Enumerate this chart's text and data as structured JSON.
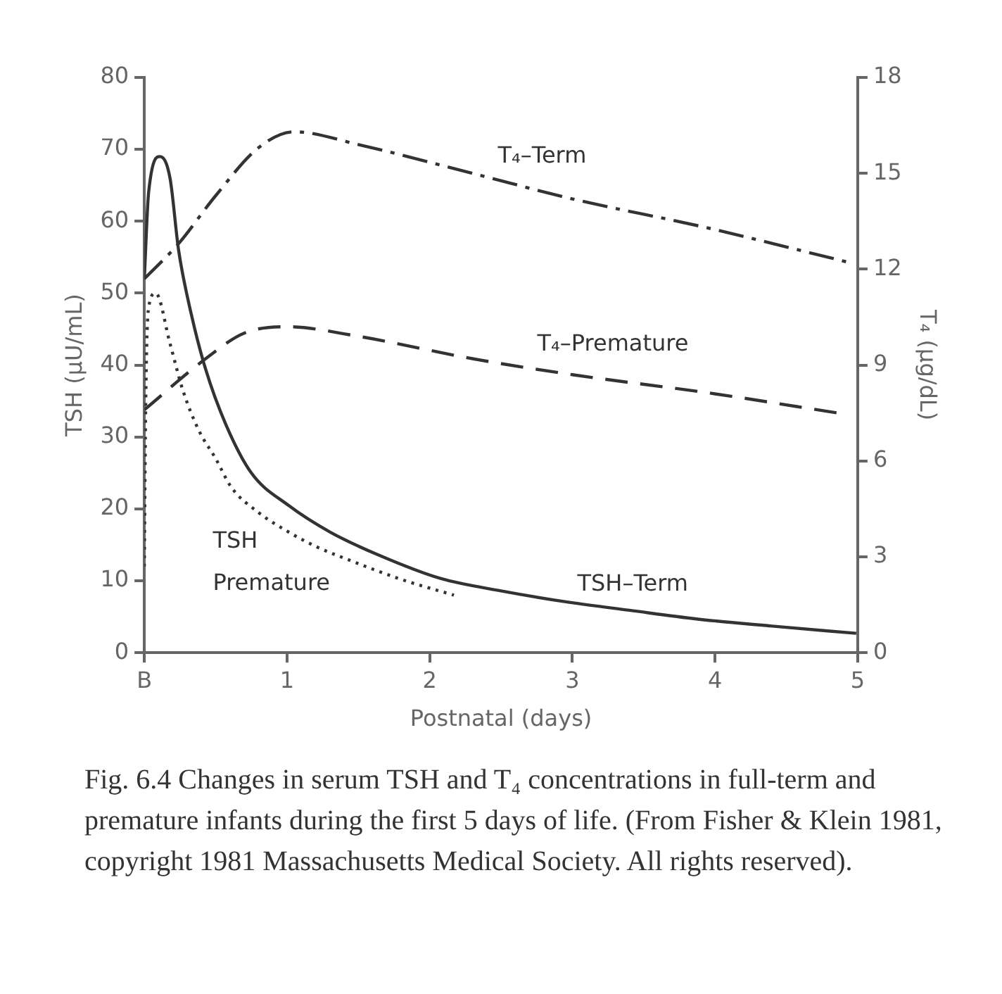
{
  "chart_data": {
    "type": "line",
    "xlabel": "Postnatal (days)",
    "ylabel": "TSH (μU/mL)",
    "y2label": "T₄ (μg/dL)",
    "xlim": [
      0,
      5
    ],
    "xticks": [
      {
        "value": 0,
        "label": "B"
      },
      1,
      2,
      3,
      4,
      5
    ],
    "ylim": [
      0,
      80
    ],
    "yticks": [
      0,
      10,
      20,
      30,
      40,
      50,
      60,
      70,
      80
    ],
    "y2lim": [
      0,
      18
    ],
    "y2ticks": [
      0,
      3,
      6,
      9,
      12,
      15,
      18
    ],
    "grid": false,
    "legend": false,
    "marker": "none",
    "series": [
      {
        "name": "TSH–Term",
        "color": "#333333",
        "line_style": "solid",
        "x": [
          0,
          0.03,
          0.11,
          0.18,
          0.24,
          0.33,
          0.43,
          0.57,
          0.75,
          1.01,
          1.3,
          1.64,
          2.08,
          2.5,
          2.98,
          3.4,
          3.87,
          4.4,
          4.99
        ],
        "values": [
          52,
          64,
          69,
          66,
          56,
          47,
          39.4,
          31.8,
          25,
          20.5,
          16.8,
          13.6,
          10.3,
          8.6,
          7,
          5.9,
          4.7,
          3.7,
          2.7
        ]
      },
      {
        "name": "TSH Premature",
        "color": "#333333",
        "line_style": "dotted",
        "x": [
          0,
          0.01,
          0.03,
          0.08,
          0.18,
          0.27,
          0.38,
          0.5,
          0.61,
          0.8,
          1.01,
          1.2,
          1.46,
          1.8,
          2.17
        ],
        "values": [
          12,
          35,
          48,
          50,
          43,
          36.5,
          31,
          27,
          23,
          19.5,
          16.8,
          14.8,
          12.7,
          10.2,
          8
        ]
      },
      {
        "name": "T₄–Term",
        "color": "#333333",
        "line_style": "dashdot",
        "axis": "y2",
        "x": [
          0,
          0.24,
          0.5,
          0.8,
          1.05,
          1.5,
          2.3,
          3,
          3.94,
          4.95
        ],
        "values": [
          11.7,
          12.8,
          14.3,
          15.8,
          16.3,
          15.9,
          15,
          14.2,
          13.3,
          12.2
        ]
      },
      {
        "name": "T₄–Premature",
        "color": "#333333",
        "line_style": "dashed",
        "axis": "y2",
        "x": [
          0,
          0.43,
          0.7,
          1,
          1.5,
          2.3,
          3,
          4,
          4.86
        ],
        "values": [
          7.6,
          9.2,
          10,
          10.2,
          9.9,
          9.2,
          8.7,
          8.1,
          7.5
        ]
      }
    ],
    "annotations": [
      "Fig. 6.4  Changes in serum TSH and T₄ concentrations in full-term and premature infants during the first 5 days of life. (From Fisher & Klein 1981, copyright 1981 Massachusetts Medical Society. All rights reserved)."
    ]
  }
}
